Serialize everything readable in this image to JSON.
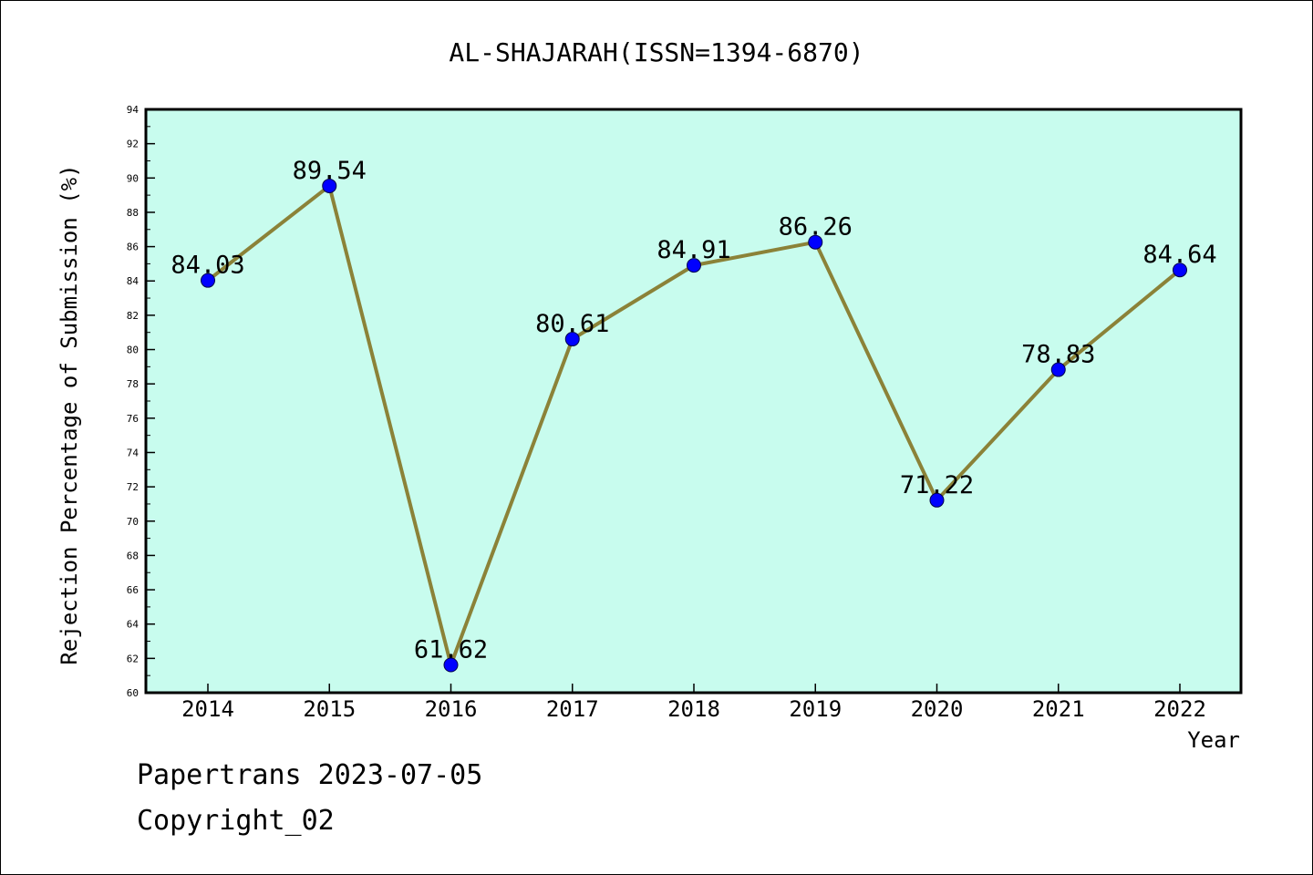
{
  "chart_data": {
    "type": "line",
    "title": "AL-SHAJARAH(ISSN=1394-6870)",
    "xlabel": "Year",
    "ylabel": "Rejection Percentage of Submission (%)",
    "categories": [
      "2014",
      "2015",
      "2016",
      "2017",
      "2018",
      "2019",
      "2020",
      "2021",
      "2022"
    ],
    "series": [
      {
        "values": [
          84.03,
          89.54,
          61.62,
          80.61,
          84.91,
          86.26,
          71.22,
          78.83,
          84.64
        ],
        "labels": [
          "84.03",
          "89.54",
          "61.62",
          "80.61",
          "84.91",
          "86.26",
          "71.22",
          "78.83",
          "84.64"
        ]
      }
    ],
    "ylim": [
      60,
      94
    ],
    "yticks": [
      "60",
      "62",
      "64",
      "66",
      "68",
      "70",
      "72",
      "74",
      "76",
      "78",
      "80",
      "82",
      "84",
      "86",
      "88",
      "90",
      "92",
      "94"
    ],
    "grid": false,
    "colors": {
      "plot_background": "#c8fcee",
      "line": "#8b8238",
      "marker": "#0000ff"
    }
  },
  "footer": {
    "line1": "Papertrans 2023-07-05",
    "line2": "Copyright_02"
  }
}
